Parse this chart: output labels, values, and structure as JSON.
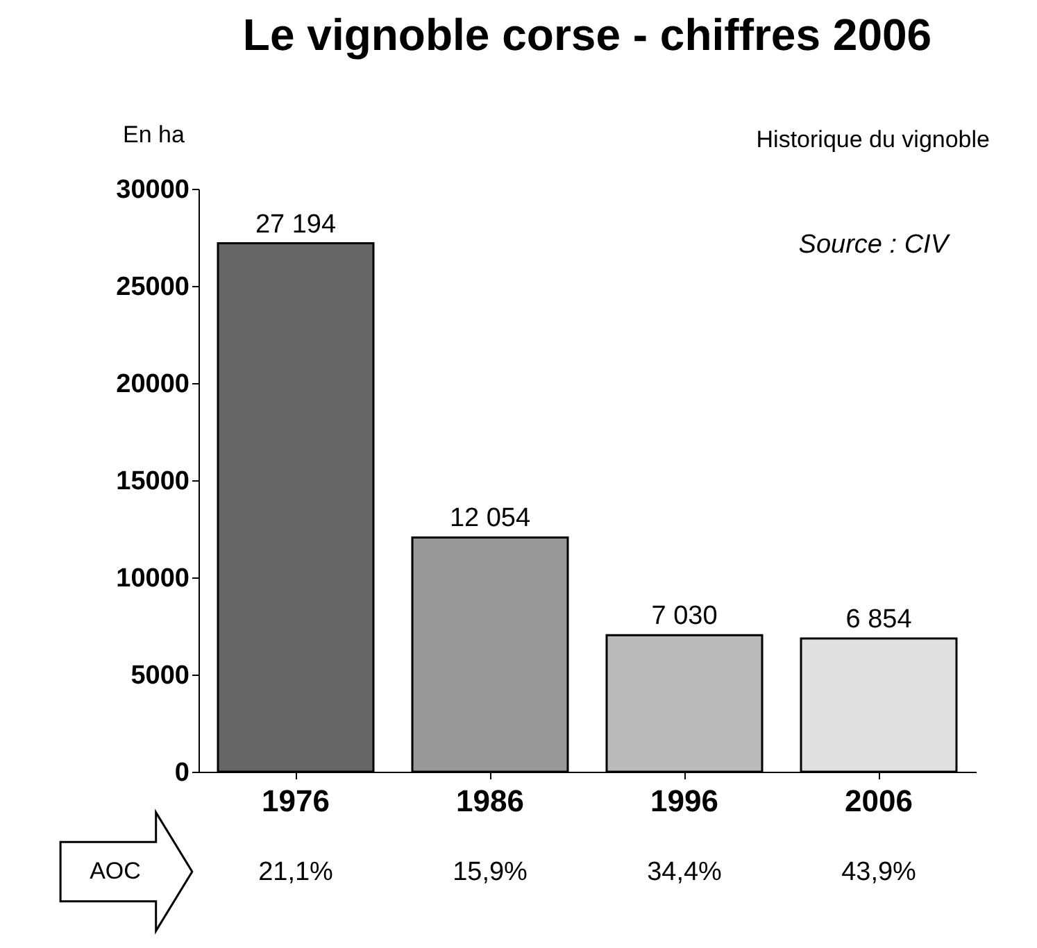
{
  "chart_data": {
    "type": "bar",
    "title": "Le vignoble corse - chiffres 2006",
    "subtitle": "Historique du vignoble",
    "ylabel": "En ha",
    "categories": [
      "1976",
      "1986",
      "1996",
      "2006"
    ],
    "values": [
      27194,
      12054,
      7030,
      6854
    ],
    "colors": [
      "#666666",
      "#999999",
      "#bbbbbb",
      "#e0e0e0"
    ],
    "value_labels": [
      "27 194",
      "12 054",
      "7 030",
      "6 854"
    ],
    "ylim": [
      0,
      30000
    ],
    "yticks": [
      0,
      5000,
      10000,
      15000,
      20000,
      25000,
      30000
    ],
    "grid": false,
    "annotations": [
      "Source : CIV",
      "AOC",
      "21,1%",
      "15,9%",
      "34,4%",
      "43,9%"
    ]
  }
}
